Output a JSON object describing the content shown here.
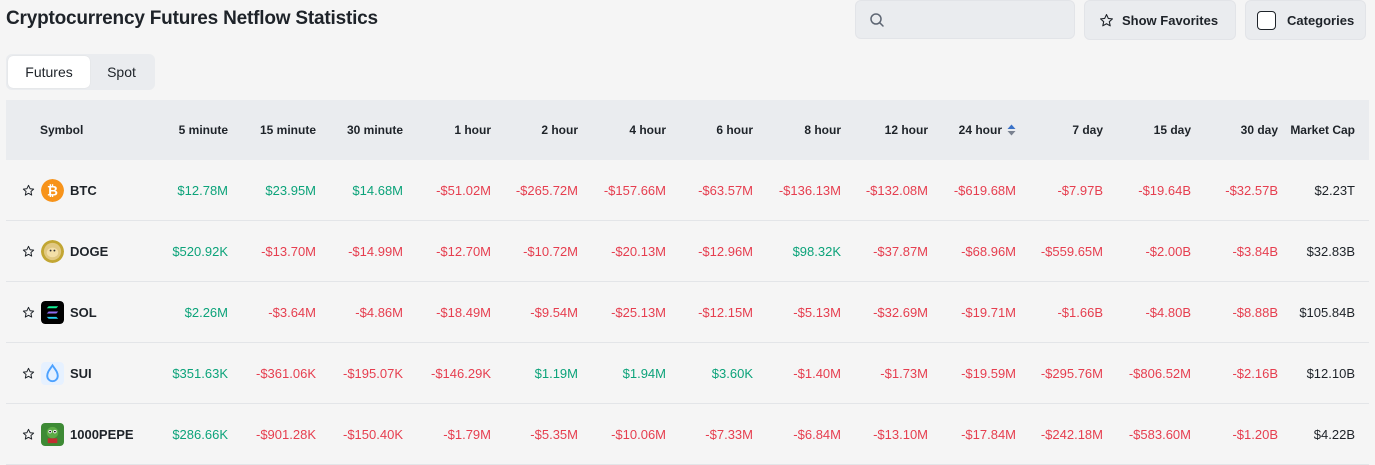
{
  "title": "Cryptocurrency Futures Netflow Statistics",
  "search": {
    "placeholder": ""
  },
  "buttons": {
    "favorites": "Show Favorites",
    "categories": "Categories"
  },
  "tabs": [
    {
      "label": "Futures",
      "active": true
    },
    {
      "label": "Spot",
      "active": false
    }
  ],
  "columns": {
    "symbol": "Symbol",
    "periods": [
      "5 minute",
      "15 minute",
      "30 minute",
      "1 hour",
      "2 hour",
      "4 hour",
      "6 hour",
      "8 hour",
      "12 hour",
      "24 hour",
      "7 day",
      "15 day",
      "30 day"
    ],
    "market_cap": "Market Cap",
    "sorted_column": "24 hour"
  },
  "colors": {
    "positive": "#0ca37a",
    "negative": "#e63e4f"
  },
  "rows": [
    {
      "symbol": "BTC",
      "icon": "btc-coin-icon",
      "values": [
        "$12.78M",
        "$23.95M",
        "$14.68M",
        "-$51.02M",
        "-$265.72M",
        "-$157.66M",
        "-$63.57M",
        "-$136.13M",
        "-$132.08M",
        "-$619.68M",
        "-$7.97B",
        "-$19.64B",
        "-$32.57B"
      ],
      "market_cap": "$2.23T"
    },
    {
      "symbol": "DOGE",
      "icon": "doge-coin-icon",
      "values": [
        "$520.92K",
        "-$13.70M",
        "-$14.99M",
        "-$12.70M",
        "-$10.72M",
        "-$20.13M",
        "-$12.96M",
        "$98.32K",
        "-$37.87M",
        "-$68.96M",
        "-$559.65M",
        "-$2.00B",
        "-$3.84B"
      ],
      "market_cap": "$32.83B"
    },
    {
      "symbol": "SOL",
      "icon": "sol-coin-icon",
      "values": [
        "$2.26M",
        "-$3.64M",
        "-$4.86M",
        "-$18.49M",
        "-$9.54M",
        "-$25.13M",
        "-$12.15M",
        "-$5.13M",
        "-$32.69M",
        "-$19.71M",
        "-$1.66B",
        "-$4.80B",
        "-$8.88B"
      ],
      "market_cap": "$105.84B"
    },
    {
      "symbol": "SUI",
      "icon": "sui-coin-icon",
      "values": [
        "$351.63K",
        "-$361.06K",
        "-$195.07K",
        "-$146.29K",
        "$1.19M",
        "$1.94M",
        "$3.60K",
        "-$1.40M",
        "-$1.73M",
        "-$19.59M",
        "-$295.76M",
        "-$806.52M",
        "-$2.16B"
      ],
      "market_cap": "$12.10B"
    },
    {
      "symbol": "1000PEPE",
      "icon": "pepe-coin-icon",
      "values": [
        "$286.66K",
        "-$901.28K",
        "-$150.40K",
        "-$1.79M",
        "-$5.35M",
        "-$10.06M",
        "-$7.33M",
        "-$6.84M",
        "-$13.10M",
        "-$17.84M",
        "-$242.18M",
        "-$583.60M",
        "-$1.20B"
      ],
      "market_cap": "$4.22B"
    }
  ]
}
